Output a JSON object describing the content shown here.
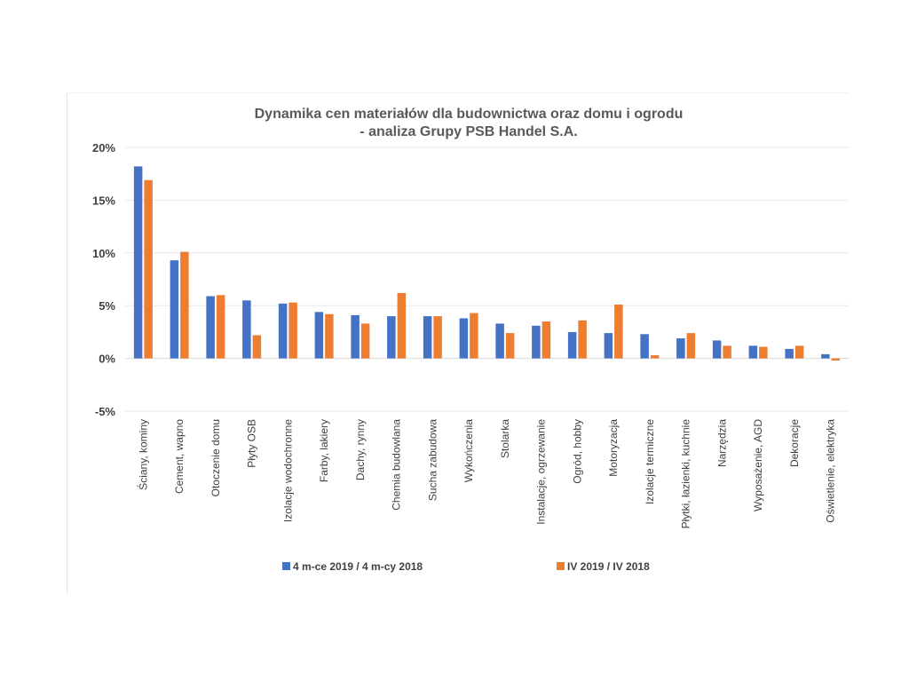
{
  "chart_data": {
    "type": "bar",
    "title": "Dynamika cen materiałów dla budownictwa oraz domu i ogrodu",
    "subtitle": "- analiza Grupy PSB Handel S.A.",
    "categories": [
      "Ściany, kominy",
      "Cement, wapno",
      "Otoczenie domu",
      "Płyty OSB",
      "Izolacje wodochronne",
      "Farby, lakiery",
      "Dachy, rynny",
      "Chemia budowlana",
      "Sucha zabudowa",
      "Wykończenia",
      "Stolarka",
      "Instalacje, ogrzewanie",
      "Ogród, hobby",
      "Motoryzacja",
      "Izolacje termiczne",
      "Płytki, łazienki, kuchnie",
      "Narzędzia",
      "Wyposażenie, AGD",
      "Dekoracje",
      "Oświetlenie, elektryka"
    ],
    "series": [
      {
        "name": "4 m-ce 2019 / 4 m-cy 2018",
        "color": "#4472C4",
        "values": [
          18.2,
          9.3,
          5.9,
          5.5,
          5.2,
          4.4,
          4.1,
          4.0,
          4.0,
          3.8,
          3.3,
          3.1,
          2.5,
          2.4,
          2.3,
          1.9,
          1.7,
          1.2,
          0.9,
          0.4
        ]
      },
      {
        "name": "IV 2019 / IV 2018",
        "color": "#ED7D31",
        "values": [
          16.9,
          10.1,
          6.0,
          2.2,
          5.3,
          4.2,
          3.3,
          6.2,
          4.0,
          4.3,
          2.4,
          3.5,
          3.6,
          5.1,
          0.3,
          2.4,
          1.2,
          1.1,
          1.2,
          -0.2
        ]
      }
    ],
    "yticks": [
      "-5%",
      "0%",
      "5%",
      "10%",
      "15%",
      "20%"
    ],
    "ylim": [
      -5,
      20
    ],
    "grid": true,
    "legend": "bottom"
  }
}
